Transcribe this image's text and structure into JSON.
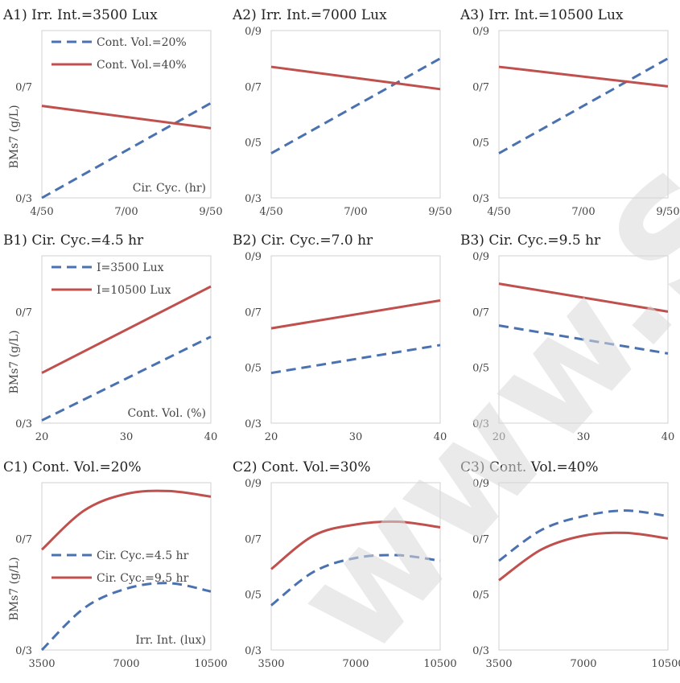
{
  "watermark": "www.SID",
  "chart_data": [
    {
      "id": "A1",
      "type": "line",
      "title": "A1) Irr. Int.=3500 Lux",
      "ylabel": "BMs7 (g/L)",
      "inner_label": "Cir. Cyc. (hr)",
      "x": [
        4.5,
        9.5
      ],
      "xticks": [
        4.5,
        7.0,
        9.5
      ],
      "xtick_labels": [
        "4/50",
        "7/00",
        "9/50"
      ],
      "ylim": [
        0.3,
        0.9
      ],
      "yticks": [
        0.3,
        0.7
      ],
      "ytick_labels": [
        "0/3",
        "0/7"
      ],
      "legend": {
        "entries": [
          {
            "label": "Cont. Vol.=20%",
            "series": 0
          },
          {
            "label": "Cont. Vol.=40%",
            "series": 1
          }
        ]
      },
      "series": [
        {
          "name": "Cont. Vol.=20%",
          "style": "dashed",
          "color": "#4a72b0",
          "values": [
            0.3,
            0.64
          ]
        },
        {
          "name": "Cont. Vol.=40%",
          "style": "solid",
          "color": "#c0504d",
          "values": [
            0.63,
            0.55
          ]
        }
      ]
    },
    {
      "id": "A2",
      "type": "line",
      "title": "A2) Irr. Int.=7000 Lux",
      "x": [
        4.5,
        9.5
      ],
      "xticks": [
        4.5,
        7.0,
        9.5
      ],
      "xtick_labels": [
        "4/50",
        "7/00",
        "9/50"
      ],
      "ylim": [
        0.3,
        0.9
      ],
      "yticks": [
        0.3,
        0.5,
        0.7,
        0.9
      ],
      "ytick_labels": [
        "0/3",
        "0/5",
        "0/7",
        "0/9"
      ],
      "series": [
        {
          "name": "Cont. Vol.=20%",
          "style": "dashed",
          "color": "#4a72b0",
          "values": [
            0.46,
            0.8
          ]
        },
        {
          "name": "Cont. Vol.=40%",
          "style": "solid",
          "color": "#c0504d",
          "values": [
            0.77,
            0.69
          ]
        }
      ]
    },
    {
      "id": "A3",
      "type": "line",
      "title": "A3) Irr. Int.=10500 Lux",
      "x": [
        4.5,
        9.5
      ],
      "xticks": [
        4.5,
        7.0,
        9.5
      ],
      "xtick_labels": [
        "4/50",
        "7/00",
        "9/50"
      ],
      "ylim": [
        0.3,
        0.9
      ],
      "yticks": [
        0.3,
        0.5,
        0.7,
        0.9
      ],
      "ytick_labels": [
        "0/3",
        "0/5",
        "0/7",
        "0/9"
      ],
      "series": [
        {
          "name": "Cont. Vol.=20%",
          "style": "dashed",
          "color": "#4a72b0",
          "values": [
            0.46,
            0.8
          ]
        },
        {
          "name": "Cont. Vol.=40%",
          "style": "solid",
          "color": "#c0504d",
          "values": [
            0.77,
            0.7
          ]
        }
      ]
    },
    {
      "id": "B1",
      "type": "line",
      "title": "B1) Cir. Cyc.=4.5 hr",
      "ylabel": "BMs7 (g/L)",
      "inner_label": "Cont. Vol. (%)",
      "x": [
        20,
        40
      ],
      "xticks": [
        20,
        30,
        40
      ],
      "xtick_labels": [
        "20",
        "30",
        "40"
      ],
      "ylim": [
        0.3,
        0.9
      ],
      "yticks": [
        0.3,
        0.7
      ],
      "ytick_labels": [
        "0/3",
        "0/7"
      ],
      "legend": {
        "entries": [
          {
            "label": "I=3500 Lux",
            "series": 0
          },
          {
            "label": "I=10500 Lux",
            "series": 1
          }
        ]
      },
      "series": [
        {
          "name": "I=3500 Lux",
          "style": "dashed",
          "color": "#4a72b0",
          "values": [
            0.31,
            0.61
          ]
        },
        {
          "name": "I=10500 Lux",
          "style": "solid",
          "color": "#c0504d",
          "values": [
            0.48,
            0.79
          ]
        }
      ]
    },
    {
      "id": "B2",
      "type": "line",
      "title": "B2) Cir. Cyc.=7.0 hr",
      "x": [
        20,
        40
      ],
      "xticks": [
        20,
        30,
        40
      ],
      "xtick_labels": [
        "20",
        "30",
        "40"
      ],
      "ylim": [
        0.3,
        0.9
      ],
      "yticks": [
        0.3,
        0.5,
        0.7,
        0.9
      ],
      "ytick_labels": [
        "0/3",
        "0/5",
        "0/7",
        "0/9"
      ],
      "series": [
        {
          "name": "I=3500 Lux",
          "style": "dashed",
          "color": "#4a72b0",
          "values": [
            0.48,
            0.58
          ]
        },
        {
          "name": "I=10500 Lux",
          "style": "solid",
          "color": "#c0504d",
          "values": [
            0.64,
            0.74
          ]
        }
      ]
    },
    {
      "id": "B3",
      "type": "line",
      "title": "B3) Cir. Cyc.=9.5 hr",
      "x": [
        20,
        40
      ],
      "xticks": [
        20,
        30,
        40
      ],
      "xtick_labels": [
        "20",
        "30",
        "40"
      ],
      "ylim": [
        0.3,
        0.9
      ],
      "yticks": [
        0.3,
        0.5,
        0.7,
        0.9
      ],
      "ytick_labels": [
        "0/3",
        "0/5",
        "0/7",
        "0/9"
      ],
      "series": [
        {
          "name": "I=3500 Lux",
          "style": "dashed",
          "color": "#4a72b0",
          "values": [
            0.65,
            0.55
          ]
        },
        {
          "name": "I=10500 Lux",
          "style": "solid",
          "color": "#c0504d",
          "values": [
            0.8,
            0.7
          ]
        }
      ]
    },
    {
      "id": "C1",
      "type": "line",
      "title": "C1) Cont. Vol.=20%",
      "ylabel": "BMs7 (g/L)",
      "inner_label": "Irr. Int. (lux)",
      "x": [
        3500,
        5250,
        7000,
        8750,
        10500
      ],
      "xticks": [
        3500,
        7000,
        10500
      ],
      "xtick_labels": [
        "3500",
        "7000",
        "10500"
      ],
      "ylim": [
        0.3,
        0.9
      ],
      "yticks": [
        0.3,
        0.7
      ],
      "ytick_labels": [
        "0/3",
        "0/7"
      ],
      "legend": {
        "entries": [
          {
            "label": "Cir. Cyc.=4.5 hr",
            "series": 0
          },
          {
            "label": "Cir. Cyc.=9.5 hr",
            "series": 1
          }
        ]
      },
      "series": [
        {
          "name": "Cir. Cyc.=4.5 hr",
          "style": "dashed",
          "color": "#4a72b0",
          "values": [
            0.3,
            0.45,
            0.52,
            0.54,
            0.51
          ]
        },
        {
          "name": "Cir. Cyc.=9.5 hr",
          "style": "solid",
          "color": "#c0504d",
          "values": [
            0.66,
            0.8,
            0.86,
            0.87,
            0.85
          ]
        }
      ]
    },
    {
      "id": "C2",
      "type": "line",
      "title": "C2) Cont. Vol.=30%",
      "x": [
        3500,
        5250,
        7000,
        8750,
        10500
      ],
      "xticks": [
        3500,
        7000,
        10500
      ],
      "xtick_labels": [
        "3500",
        "7000",
        "10500"
      ],
      "ylim": [
        0.3,
        0.9
      ],
      "yticks": [
        0.3,
        0.5,
        0.7,
        0.9
      ],
      "ytick_labels": [
        "0/3",
        "0/5",
        "0/7",
        "0/9"
      ],
      "series": [
        {
          "name": "Cir. Cyc.=4.5 hr",
          "style": "dashed",
          "color": "#4a72b0",
          "values": [
            0.46,
            0.58,
            0.63,
            0.64,
            0.62
          ]
        },
        {
          "name": "Cir. Cyc.=9.5 hr",
          "style": "solid",
          "color": "#c0504d",
          "values": [
            0.59,
            0.71,
            0.75,
            0.76,
            0.74
          ]
        }
      ]
    },
    {
      "id": "C3",
      "type": "line",
      "title": "C3) Cont. Vol.=40%",
      "x": [
        3500,
        5250,
        7000,
        8750,
        10500
      ],
      "xticks": [
        3500,
        7000,
        10500
      ],
      "xtick_labels": [
        "3500",
        "7000",
        "10500"
      ],
      "ylim": [
        0.3,
        0.9
      ],
      "yticks": [
        0.3,
        0.5,
        0.7,
        0.9
      ],
      "ytick_labels": [
        "0/3",
        "0/5",
        "0/7",
        "0/9"
      ],
      "series": [
        {
          "name": "Cir. Cyc.=4.5 hr",
          "style": "dashed",
          "color": "#4a72b0",
          "values": [
            0.62,
            0.73,
            0.78,
            0.8,
            0.78
          ]
        },
        {
          "name": "Cir. Cyc.=9.5 hr",
          "style": "solid",
          "color": "#c0504d",
          "values": [
            0.55,
            0.66,
            0.71,
            0.72,
            0.7
          ]
        }
      ]
    }
  ]
}
